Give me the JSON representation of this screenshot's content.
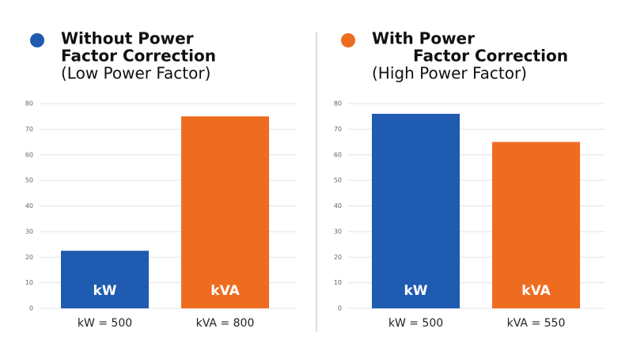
{
  "chart_data": [
    {
      "type": "bar",
      "title": [
        "Without Power",
        "Factor Correction"
      ],
      "subtitle": "(Low Power Factor)",
      "title_color": "#1f5bb0",
      "categories": [
        "kW = 500",
        "kVA = 800"
      ],
      "bar_labels": [
        "kW",
        "kVA"
      ],
      "values": [
        22.5,
        75
      ],
      "colors": [
        "#1f5bb0",
        "#ee6c1f"
      ],
      "ylim": [
        0,
        80
      ],
      "yticks": [
        0,
        10,
        20,
        30,
        40,
        50,
        60,
        70,
        80
      ],
      "grid": true
    },
    {
      "type": "bar",
      "title": [
        "With Power",
        "Factor Correction"
      ],
      "subtitle": "(High Power Factor)",
      "title_color": "#ee6c1f",
      "categories": [
        "kW = 500",
        "kVA = 550"
      ],
      "bar_labels": [
        "kW",
        "kVA"
      ],
      "values": [
        76,
        65
      ],
      "colors": [
        "#1f5bb0",
        "#ee6c1f"
      ],
      "ylim": [
        0,
        80
      ],
      "yticks": [
        0,
        10,
        20,
        30,
        40,
        50,
        60,
        70,
        80
      ],
      "grid": true
    }
  ]
}
